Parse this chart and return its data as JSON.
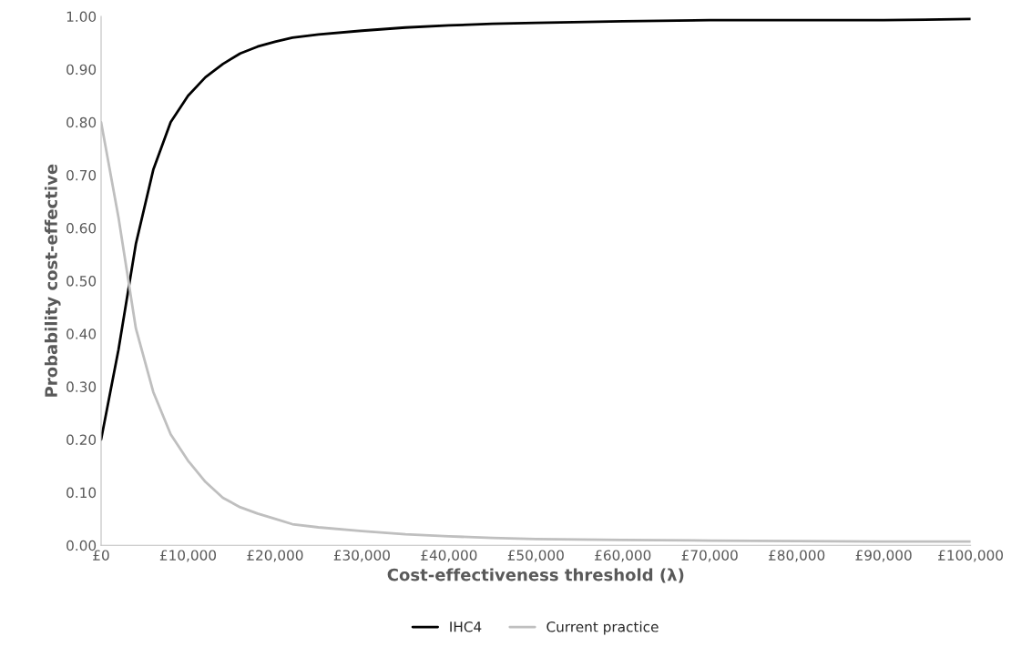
{
  "chart_data": {
    "type": "line",
    "xlabel": "Cost-effectiveness threshold (λ)",
    "ylabel": "Probability cost-effective",
    "xlim": [
      0,
      100000
    ],
    "ylim": [
      0,
      1
    ],
    "xticks": [
      {
        "value": 0,
        "label": "£0"
      },
      {
        "value": 10000,
        "label": "£10,000"
      },
      {
        "value": 20000,
        "label": "£20,000"
      },
      {
        "value": 30000,
        "label": "£30,000"
      },
      {
        "value": 40000,
        "label": "£40,000"
      },
      {
        "value": 50000,
        "label": "£50,000"
      },
      {
        "value": 60000,
        "label": "£60,000"
      },
      {
        "value": 70000,
        "label": "£70,000"
      },
      {
        "value": 80000,
        "label": "£80,000"
      },
      {
        "value": 90000,
        "label": "£90,000"
      },
      {
        "value": 100000,
        "label": "£100,000"
      }
    ],
    "yticks": [
      {
        "value": 0,
        "label": "0.00"
      },
      {
        "value": 0.1,
        "label": "0.10"
      },
      {
        "value": 0.2,
        "label": "0.20"
      },
      {
        "value": 0.3,
        "label": "0.30"
      },
      {
        "value": 0.4,
        "label": "0.40"
      },
      {
        "value": 0.5,
        "label": "0.50"
      },
      {
        "value": 0.6,
        "label": "0.60"
      },
      {
        "value": 0.7,
        "label": "0.70"
      },
      {
        "value": 0.8,
        "label": "0.80"
      },
      {
        "value": 0.9,
        "label": "0.90"
      },
      {
        "value": 1,
        "label": "1.00"
      }
    ],
    "x": [
      0,
      2000,
      4000,
      6000,
      8000,
      10000,
      12000,
      14000,
      16000,
      18000,
      20000,
      22000,
      25000,
      30000,
      35000,
      40000,
      45000,
      50000,
      60000,
      70000,
      80000,
      90000,
      100000
    ],
    "series": [
      {
        "name": "IHC4",
        "color": "#000000",
        "values": [
          0.2,
          0.37,
          0.57,
          0.71,
          0.8,
          0.85,
          0.885,
          0.91,
          0.93,
          0.943,
          0.952,
          0.96,
          0.966,
          0.973,
          0.979,
          0.983,
          0.986,
          0.988,
          0.991,
          0.993,
          0.993,
          0.993,
          0.995
        ]
      },
      {
        "name": "Current practice",
        "color": "#bfbfbf",
        "values": [
          0.8,
          0.62,
          0.41,
          0.29,
          0.21,
          0.16,
          0.12,
          0.09,
          0.072,
          0.06,
          0.05,
          0.04,
          0.034,
          0.027,
          0.021,
          0.017,
          0.014,
          0.012,
          0.01,
          0.009,
          0.008,
          0.007,
          0.007
        ]
      }
    ],
    "grid": false,
    "legend": "bottom",
    "marker": "none",
    "line_style": "solid"
  }
}
